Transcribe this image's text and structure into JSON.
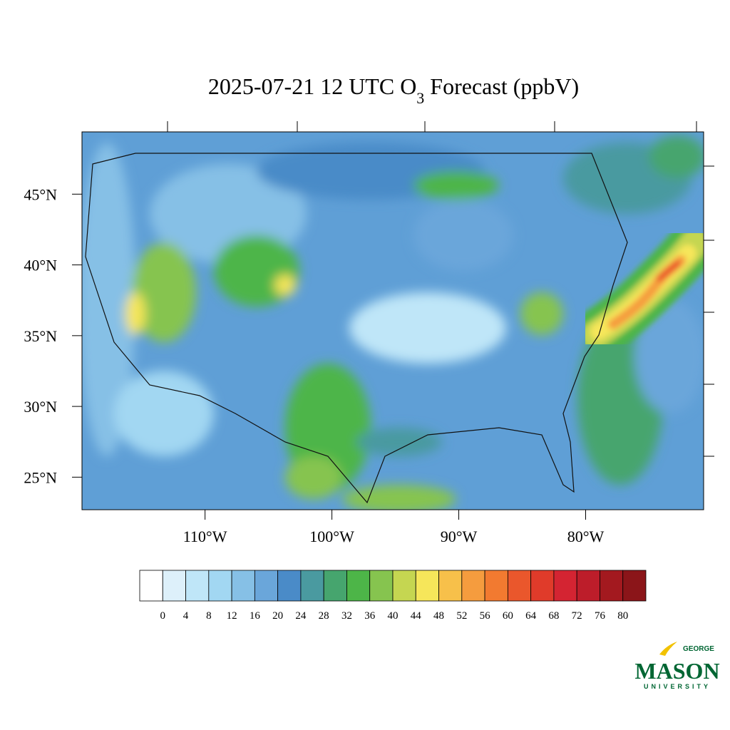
{
  "map": {
    "title": {
      "main": "2025-07-21 12 UTC O",
      "sub": "3",
      "rest": " Forecast (ppbV)"
    },
    "xlim": [
      -119.7,
      -70.7
    ],
    "ylim": [
      22.7,
      49.4
    ],
    "xticks": [
      {
        "value": -110,
        "label": "110°W"
      },
      {
        "value": -100,
        "label": "100°W"
      },
      {
        "value": -90,
        "label": "90°W"
      },
      {
        "value": -80,
        "label": "80°W"
      }
    ],
    "yticks": [
      {
        "value": 45,
        "label": "45°N"
      },
      {
        "value": 40,
        "label": "40°N"
      },
      {
        "value": 35,
        "label": "35°N"
      },
      {
        "value": 30,
        "label": "30°N"
      },
      {
        "value": 25,
        "label": "25°N"
      }
    ]
  },
  "colorbar": {
    "levels": [
      0,
      4,
      8,
      12,
      16,
      20,
      24,
      28,
      32,
      36,
      40,
      44,
      48,
      52,
      56,
      60,
      64,
      68,
      72,
      76,
      80
    ],
    "colors": [
      "#ffffff",
      "#ddf0fa",
      "#bfe6f8",
      "#a2d7f2",
      "#86c0e6",
      "#6aa6da",
      "#4a8bc8",
      "#4a9aa0",
      "#46a56e",
      "#4db548",
      "#86c44f",
      "#c5d651",
      "#f6e65a",
      "#f7c04a",
      "#f59c3e",
      "#f27a30",
      "#ea572c",
      "#e03b2a",
      "#d42432",
      "#bd1d2a",
      "#a3191f",
      "#8b1519"
    ]
  },
  "logo": {
    "top": "GEORGE",
    "main": "MASON",
    "bottom": "UNIVERSITY"
  }
}
